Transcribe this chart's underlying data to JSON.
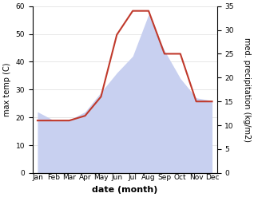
{
  "months": [
    "Jan",
    "Feb",
    "Mar",
    "Apr",
    "May",
    "Jun",
    "Jul",
    "Aug",
    "Sep",
    "Oct",
    "Nov",
    "Dec"
  ],
  "max_temp": [
    22,
    19,
    19,
    22,
    29,
    36,
    42,
    57,
    44,
    34,
    27,
    26
  ],
  "precipitation": [
    11,
    11,
    11,
    12,
    16,
    29,
    34,
    34,
    25,
    25,
    15,
    15
  ],
  "temp_fill_color": "#c8d0f0",
  "temp_fill_edge": "#a0aad4",
  "precip_color": "#c0392b",
  "ylim_temp": [
    0,
    60
  ],
  "ylim_precip": [
    0,
    35
  ],
  "yticks_temp": [
    0,
    10,
    20,
    30,
    40,
    50,
    60
  ],
  "yticks_precip": [
    0,
    5,
    10,
    15,
    20,
    25,
    30,
    35
  ],
  "xlabel": "date (month)",
  "ylabel_left": "max temp (C)",
  "ylabel_right": "med. precipitation (kg/m2)",
  "figsize": [
    3.18,
    2.47
  ],
  "dpi": 100,
  "tick_fontsize": 6.5,
  "label_fontsize": 7,
  "xlabel_fontsize": 8
}
